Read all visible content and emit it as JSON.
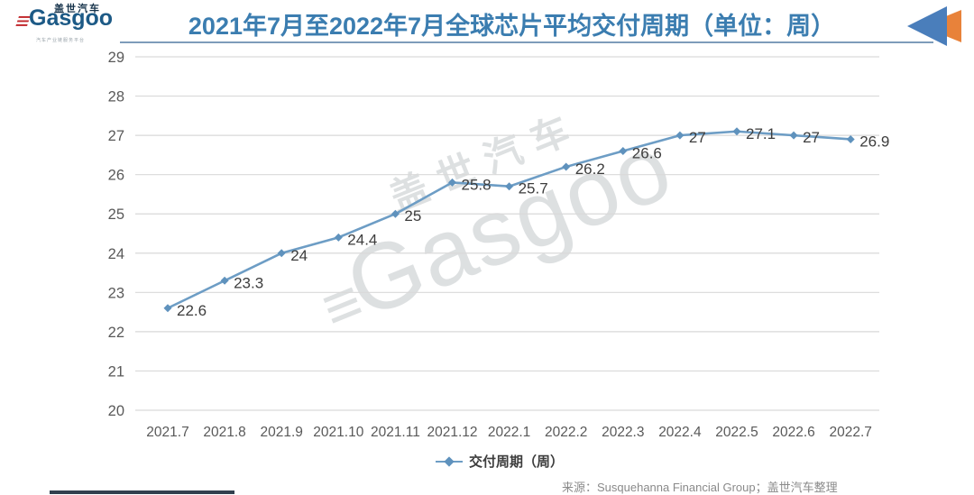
{
  "header": {
    "logo": {
      "brand_en": "Gasgoo",
      "brand_cn": "盖世汽车",
      "tagline": "汽车产业链服务平台"
    },
    "title": "2021年7月至2022年7月全球芯片平均交付周期（单位：周）"
  },
  "chart_data": {
    "type": "line",
    "title": "2021年7月至2022年7月全球芯片平均交付周期（单位：周）",
    "x": [
      "2021.7",
      "2021.8",
      "2021.9",
      "2021.10",
      "2021.11",
      "2021.12",
      "2022.1",
      "2022.2",
      "2022.3",
      "2022.4",
      "2022.5",
      "2022.6",
      "2022.7"
    ],
    "series": [
      {
        "name": "交付周期（周）",
        "values": [
          22.6,
          23.3,
          24,
          24.4,
          25,
          25.8,
          25.7,
          26.2,
          26.6,
          27,
          27.1,
          27,
          26.9
        ]
      }
    ],
    "ylim": [
      20,
      29
    ],
    "ytick_step": 1,
    "grid": true,
    "legend_position": "bottom",
    "xlabel": "",
    "ylabel": ""
  },
  "legend": {
    "label": "交付周期（周）"
  },
  "watermark": {
    "brand_cn": "盖世汽车",
    "brand_en": "Gasgoo",
    "stripes_glyph": "≡"
  },
  "footer": {
    "source": "来源：Susquehanna Financial Group；盖世汽车整理"
  },
  "colors": {
    "title": "#3b7db0",
    "line": "#6d9dc5",
    "marker": "#5f92bd",
    "grid": "#d9d9d9",
    "axis_text": "#595959",
    "data_label": "#3d3d3d",
    "triangle_blue": "#4a7ebb",
    "triangle_orange": "#e8823a"
  }
}
